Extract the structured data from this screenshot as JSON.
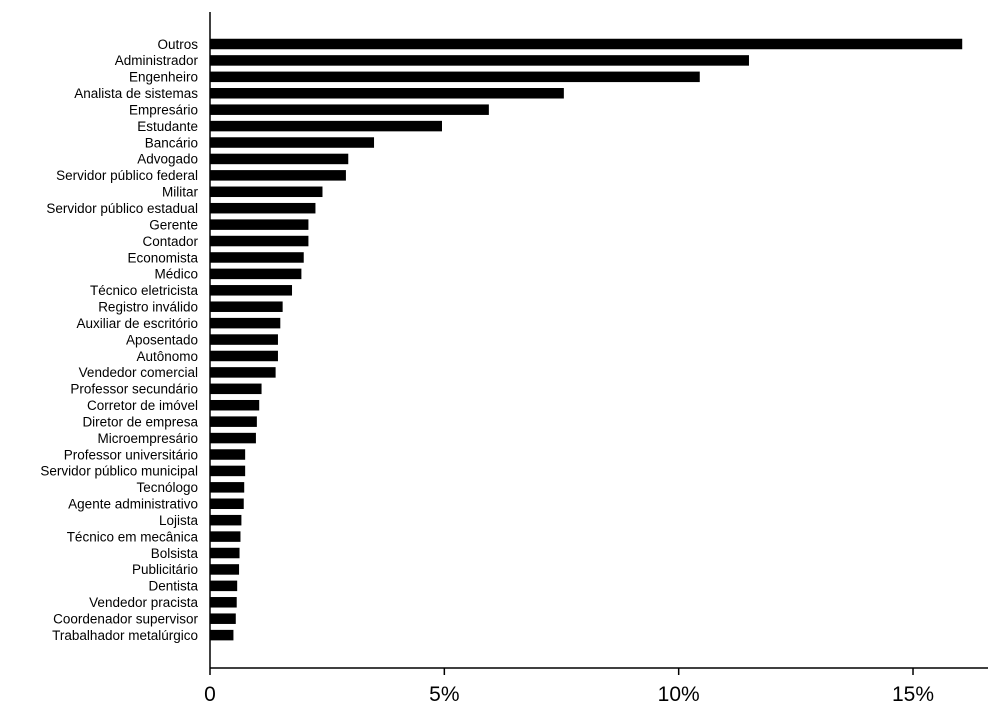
{
  "chart_data": {
    "type": "bar",
    "orientation": "horizontal",
    "categories": [
      "Outros",
      "Administrador",
      "Engenheiro",
      "Analista de sistemas",
      "Empresário",
      "Estudante",
      "Bancário",
      "Advogado",
      "Servidor público federal",
      "Militar",
      "Servidor público estadual",
      "Gerente",
      "Contador",
      "Economista",
      "Médico",
      "Técnico eletricista",
      "Registro inválido",
      "Auxiliar de escritório",
      "Aposentado",
      "Autônomo",
      "Vendedor comercial",
      "Professor secundário",
      "Corretor de imóvel",
      "Diretor de empresa",
      "Microempresário",
      "Professor universitário",
      "Servidor público municipal",
      "Tecnólogo",
      "Agente administrativo",
      "Lojista",
      "Técnico em mecânica",
      "Bolsista",
      "Publicitário",
      "Dentista",
      "Vendedor pracista",
      "Coordenador supervisor",
      "Trabalhador metalúrgico"
    ],
    "values": [
      16.05,
      11.5,
      10.45,
      7.55,
      5.95,
      4.95,
      3.5,
      2.95,
      2.9,
      2.4,
      2.25,
      2.1,
      2.1,
      2.0,
      1.95,
      1.75,
      1.55,
      1.5,
      1.45,
      1.45,
      1.4,
      1.1,
      1.05,
      1.0,
      0.98,
      0.75,
      0.75,
      0.73,
      0.72,
      0.67,
      0.65,
      0.63,
      0.62,
      0.58,
      0.57,
      0.55,
      0.5
    ],
    "x_ticks": [
      "0",
      "5%",
      "10%",
      "15%"
    ],
    "x_tick_values": [
      0,
      5,
      10,
      15
    ],
    "xlim": [
      0,
      16.6
    ],
    "value_unit": "%",
    "title": "",
    "xlabel": "",
    "ylabel": "",
    "grid": false,
    "bar_color": "#000000"
  }
}
